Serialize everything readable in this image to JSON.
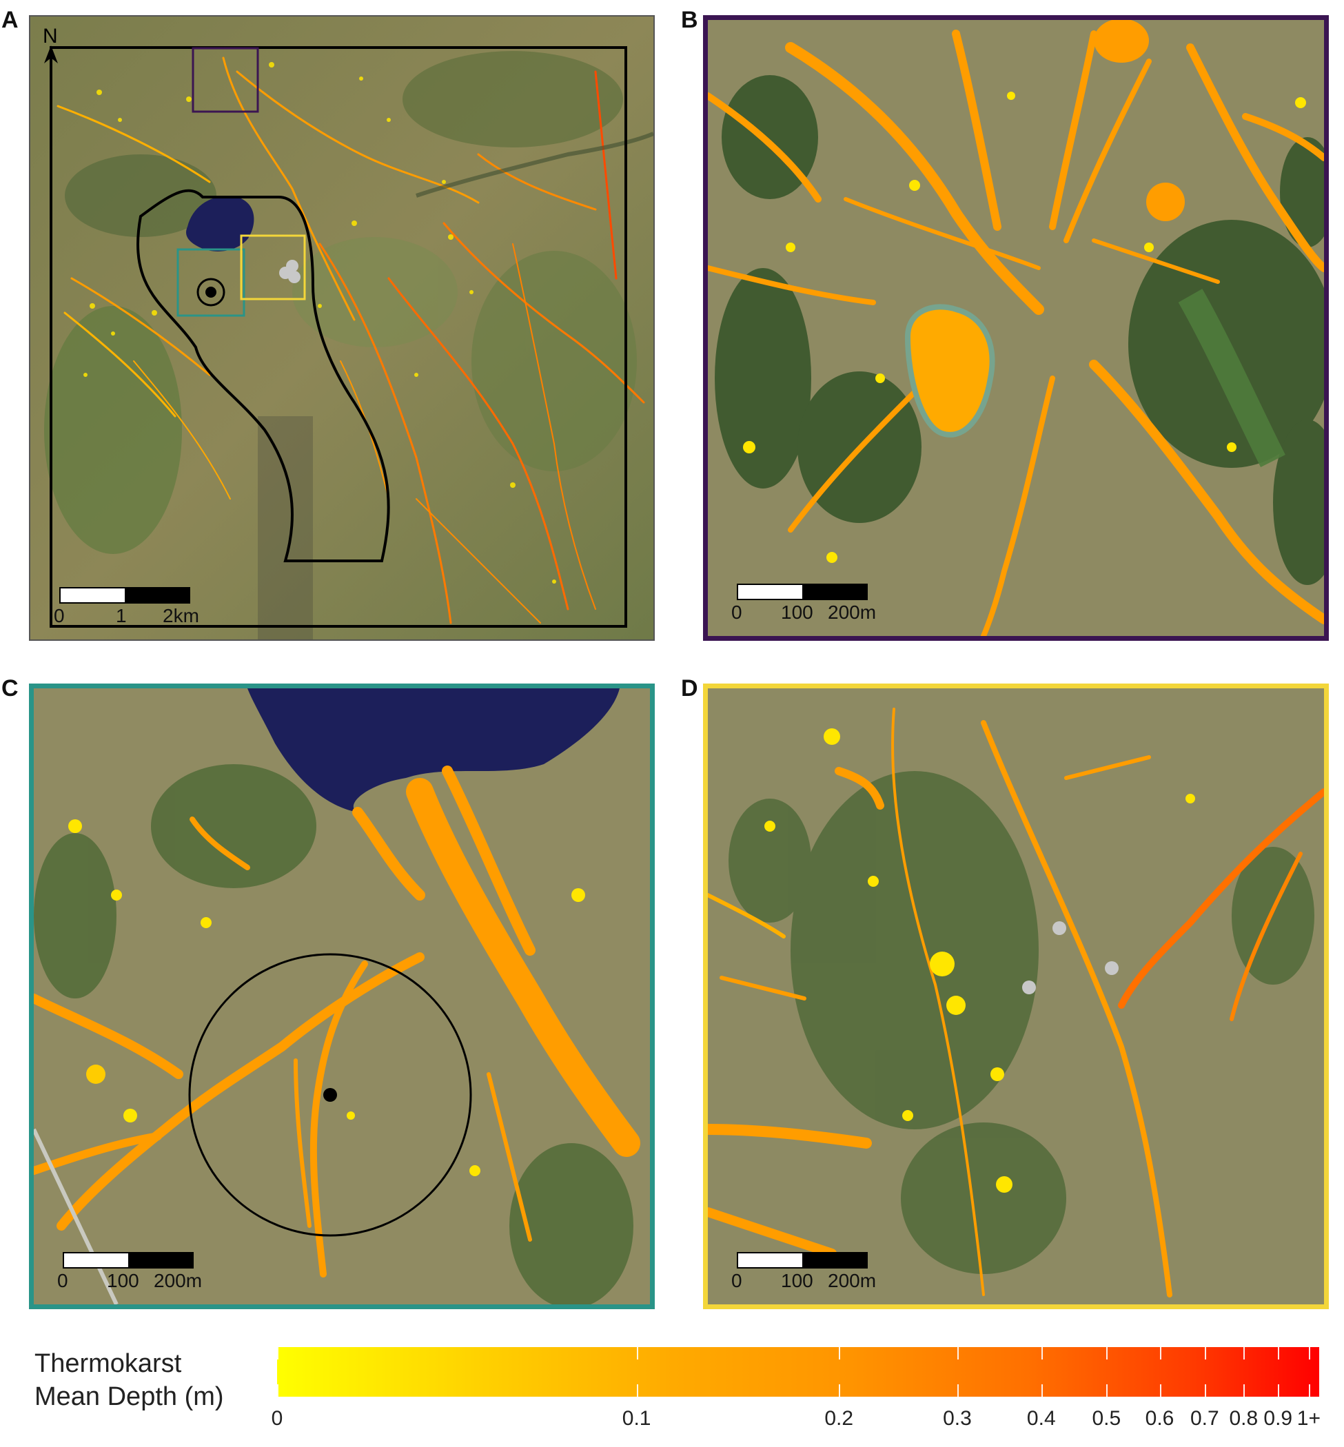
{
  "panels": [
    {
      "letter": "A",
      "scale": [
        "0",
        "1",
        "2km"
      ],
      "frame_color": "#2a2a2a"
    },
    {
      "letter": "B",
      "scale": [
        "0",
        "100",
        "200m"
      ],
      "frame_color": "#3b1552"
    },
    {
      "letter": "C",
      "scale": [
        "0",
        "100",
        "200m"
      ],
      "frame_color": "#2a9488"
    },
    {
      "letter": "D",
      "scale": [
        "0",
        "100",
        "200m"
      ],
      "frame_color": "#f3d63a"
    }
  ],
  "north_label": "N",
  "colors": {
    "terrain_base": "#8f8a5e",
    "forest": "#3f5a2e",
    "lake": "#1c1f5a",
    "thermokarst_low": "#ffff00",
    "thermokarst_mid": "#ffa500",
    "thermokarst_high": "#ff2a00",
    "site_marker_grey": "#c8c8c8"
  },
  "inset_boxes": [
    {
      "panel": "B",
      "color": "#3b1552"
    },
    {
      "panel": "C",
      "color": "#2a9488"
    },
    {
      "panel": "D",
      "color": "#f3d63a"
    }
  ],
  "legend": {
    "title_line1": "Thermokarst",
    "title_line2": "Mean Depth (m)",
    "ticks": [
      {
        "label": "0",
        "value": 0
      },
      {
        "label": "0.1",
        "value": 0.1
      },
      {
        "label": "0.2",
        "value": 0.2
      },
      {
        "label": "0.3",
        "value": 0.3
      },
      {
        "label": "0.4",
        "value": 0.4
      },
      {
        "label": "0.5",
        "value": 0.5
      },
      {
        "label": "0.6",
        "value": 0.6
      },
      {
        "label": "0.7",
        "value": 0.7
      },
      {
        "label": "0.8",
        "value": 0.8
      },
      {
        "label": "0.9",
        "value": 0.9
      },
      {
        "label": "1+",
        "value": 1.0
      }
    ]
  }
}
